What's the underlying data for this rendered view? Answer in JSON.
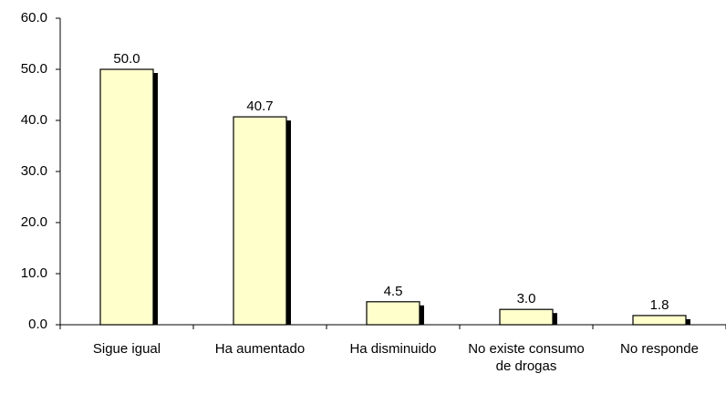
{
  "chart_data": {
    "type": "bar",
    "categories": [
      "Sigue igual",
      "Ha aumentado",
      "Ha disminuido",
      "No existe consumo de drogas",
      "No responde"
    ],
    "values": [
      50.0,
      40.7,
      4.5,
      3.0,
      1.8
    ],
    "value_labels": [
      "50.0",
      "40.7",
      "4.5",
      "3.0",
      "1.8"
    ],
    "color": "#ffffcc",
    "ylim": [
      0,
      60
    ],
    "yticks": [
      {
        "value": 0,
        "label": "0.0"
      },
      {
        "value": 10,
        "label": "10.0"
      },
      {
        "value": 20,
        "label": "20.0"
      },
      {
        "value": 30,
        "label": "30.0"
      },
      {
        "value": 40,
        "label": "40.0"
      },
      {
        "value": 50,
        "label": "50.0"
      },
      {
        "value": 60,
        "label": "60.0"
      }
    ],
    "grid": false
  }
}
